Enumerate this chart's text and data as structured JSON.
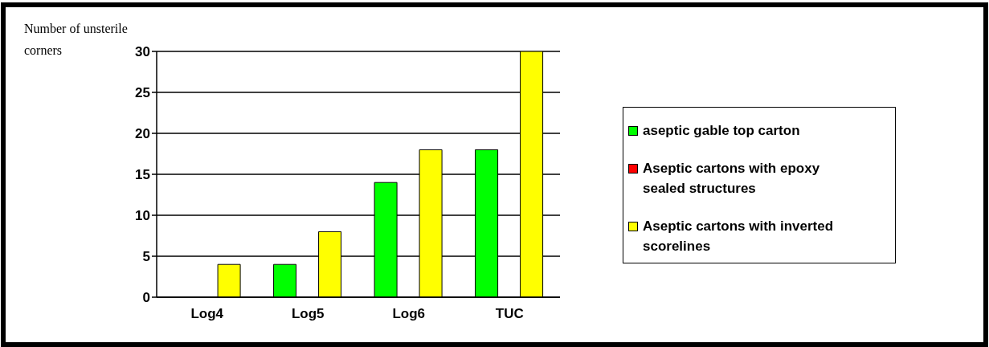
{
  "chart_data": {
    "type": "bar",
    "ylabel": "Number of unsterile corners",
    "categories": [
      "Log4",
      "Log5",
      "Log6",
      "TUC"
    ],
    "series": [
      {
        "name": "aseptic gable top carton",
        "color": "#00ff00",
        "values": [
          0,
          4,
          14,
          18
        ]
      },
      {
        "name": "Aseptic cartons with epoxy sealed structures",
        "color": "#ff0000",
        "values": [
          0,
          0,
          0,
          0
        ]
      },
      {
        "name": "Aseptic cartons with inverted scorelines",
        "color": "#ffff00",
        "values": [
          4,
          8,
          18,
          30
        ]
      }
    ],
    "ylim": [
      0,
      30
    ],
    "yticks": [
      0,
      5,
      10,
      15,
      20,
      25,
      30
    ],
    "grid": "y",
    "legend": "right"
  }
}
